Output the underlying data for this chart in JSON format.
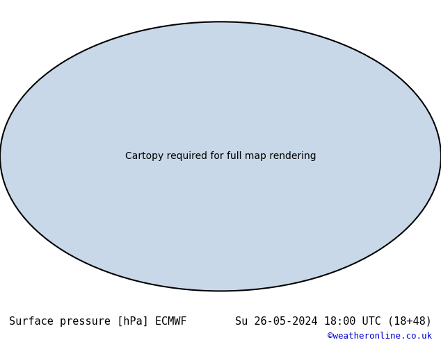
{
  "title_left": "Surface pressure [hPa] ECMWF",
  "title_right": "Su 26-05-2024 18:00 UTC (18+48)",
  "credit": "©weatheronline.co.uk",
  "credit_color": "#0000cc",
  "bg_color": "#ffffff",
  "map_bg": "#c8d8e8",
  "land_color": "#e0e0e0",
  "highlight_color": "#c8f0a0",
  "contour_interval": 4,
  "pressure_min": 940,
  "pressure_max": 1044,
  "title_fontsize": 11,
  "credit_fontsize": 9
}
